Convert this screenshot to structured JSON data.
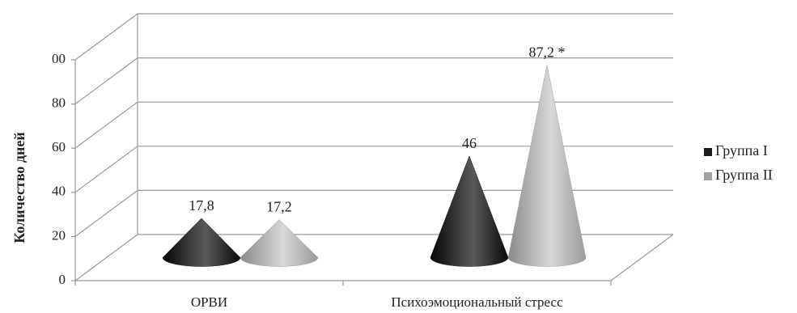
{
  "chart_data": {
    "type": "cone3d",
    "y_label": "Количество   дней",
    "categories": [
      "ОРВИ",
      "Психоэмоциональный стресс"
    ],
    "series": [
      {
        "name": "Группа I",
        "color": "#1a1a1a",
        "values": [
          17.8,
          46
        ],
        "value_labels": [
          "17,8",
          "46"
        ]
      },
      {
        "name": "Группа II",
        "color": "#a0a0a0",
        "values": [
          17.2,
          87.2
        ],
        "value_labels": [
          "17,2",
          "87,2 *"
        ]
      }
    ],
    "ylim": [
      0,
      100
    ],
    "yticks": [
      0,
      20,
      40,
      60,
      80,
      {
        "value": 100,
        "label": "00"
      }
    ],
    "grid": true,
    "legend": "right"
  }
}
